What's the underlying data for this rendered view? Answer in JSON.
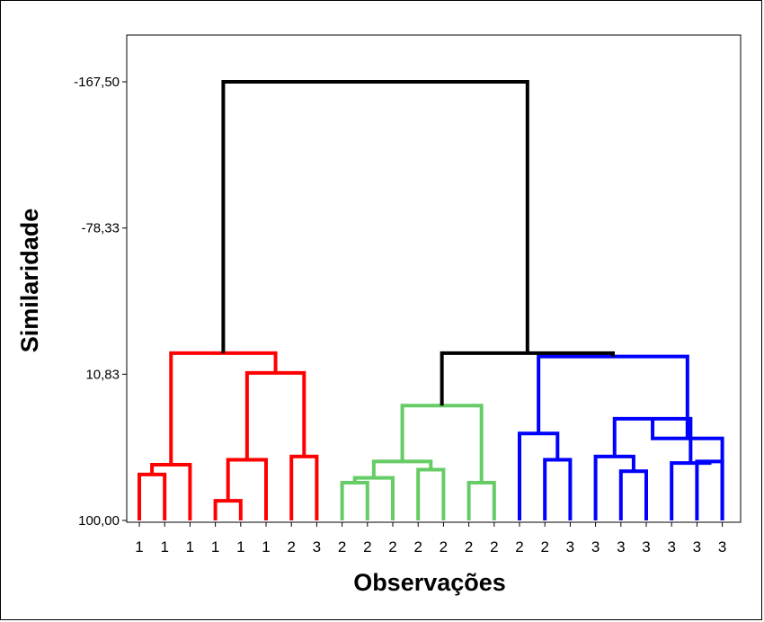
{
  "chart_data": {
    "type": "dendrogram",
    "xlabel": "Observações",
    "ylabel": "Similaridade",
    "y_ticks": [
      "-167,50",
      "-78,33",
      "10,83",
      "100,00"
    ],
    "y_tick_values": [
      -167.5,
      -78.33,
      10.83,
      100.0
    ],
    "ylim": [
      100.0,
      -167.5
    ],
    "leaf_labels": [
      "1",
      "1",
      "1",
      "1",
      "1",
      "1",
      "2",
      "3",
      "2",
      "2",
      "2",
      "2",
      "2",
      "2",
      "2",
      "2",
      "2",
      "3",
      "3",
      "3",
      "3",
      "3",
      "3",
      "3"
    ],
    "clusters": [
      {
        "color": "#ff0000",
        "leaves": [
          0,
          1,
          2,
          3,
          4,
          5,
          6,
          7
        ]
      },
      {
        "color": "#66cc66",
        "leaves": [
          8,
          9,
          10,
          11,
          12,
          13,
          14
        ]
      },
      {
        "color": "#0000ff",
        "leaves": [
          15,
          16,
          17,
          18,
          19,
          20,
          21,
          22,
          23
        ]
      }
    ],
    "merges": [
      {
        "a": 0,
        "b": 1,
        "h": 72.0,
        "color": "#ff0000"
      },
      {
        "a": 24,
        "b": 2,
        "h": 66.0,
        "color": "#ff0000"
      },
      {
        "a": 3,
        "b": 4,
        "h": 88.0,
        "color": "#ff0000"
      },
      {
        "a": 26,
        "b": 5,
        "h": 63.0,
        "color": "#ff0000"
      },
      {
        "a": 6,
        "b": 7,
        "h": 61.0,
        "color": "#ff0000"
      },
      {
        "a": 27,
        "b": 28,
        "h": 10.0,
        "color": "#ff0000"
      },
      {
        "a": 25,
        "b": 29,
        "h": -2.0,
        "color": "#ff0000"
      },
      {
        "a": 8,
        "b": 9,
        "h": 77.0,
        "color": "#66cc66"
      },
      {
        "a": 31,
        "b": 10,
        "h": 74.0,
        "color": "#66cc66"
      },
      {
        "a": 11,
        "b": 12,
        "h": 69.0,
        "color": "#66cc66"
      },
      {
        "a": 32,
        "b": 33,
        "h": 64.0,
        "color": "#66cc66"
      },
      {
        "a": 13,
        "b": 14,
        "h": 77.0,
        "color": "#66cc66"
      },
      {
        "a": 34,
        "b": 35,
        "h": 30.0,
        "color": "#66cc66"
      },
      {
        "a": 16,
        "b": 17,
        "h": 63.0,
        "color": "#0000ff"
      },
      {
        "a": 15,
        "b": 37,
        "h": 47.0,
        "color": "#0000ff"
      },
      {
        "a": 19,
        "b": 20,
        "h": 70.0,
        "color": "#0000ff"
      },
      {
        "a": 18,
        "b": 39,
        "h": 61.0,
        "color": "#0000ff"
      },
      {
        "a": 22,
        "b": 23,
        "h": 64.0,
        "color": "#0000ff"
      },
      {
        "a": 21,
        "b": 41,
        "h": 65.0,
        "color": "#0000ff"
      },
      {
        "a": 40,
        "b": 42,
        "h": 38.0,
        "color": "#0000ff"
      },
      {
        "a": 43,
        "b": 23,
        "h": 50.0,
        "color": "#0000ff"
      },
      {
        "a": 38,
        "b": 44,
        "h": 0.0,
        "color": "#0000ff"
      },
      {
        "a": 36,
        "b": 45,
        "h": -2.0,
        "color": "#000000"
      },
      {
        "a": 30,
        "b": 46,
        "h": -167.5,
        "color": "#000000"
      }
    ]
  }
}
